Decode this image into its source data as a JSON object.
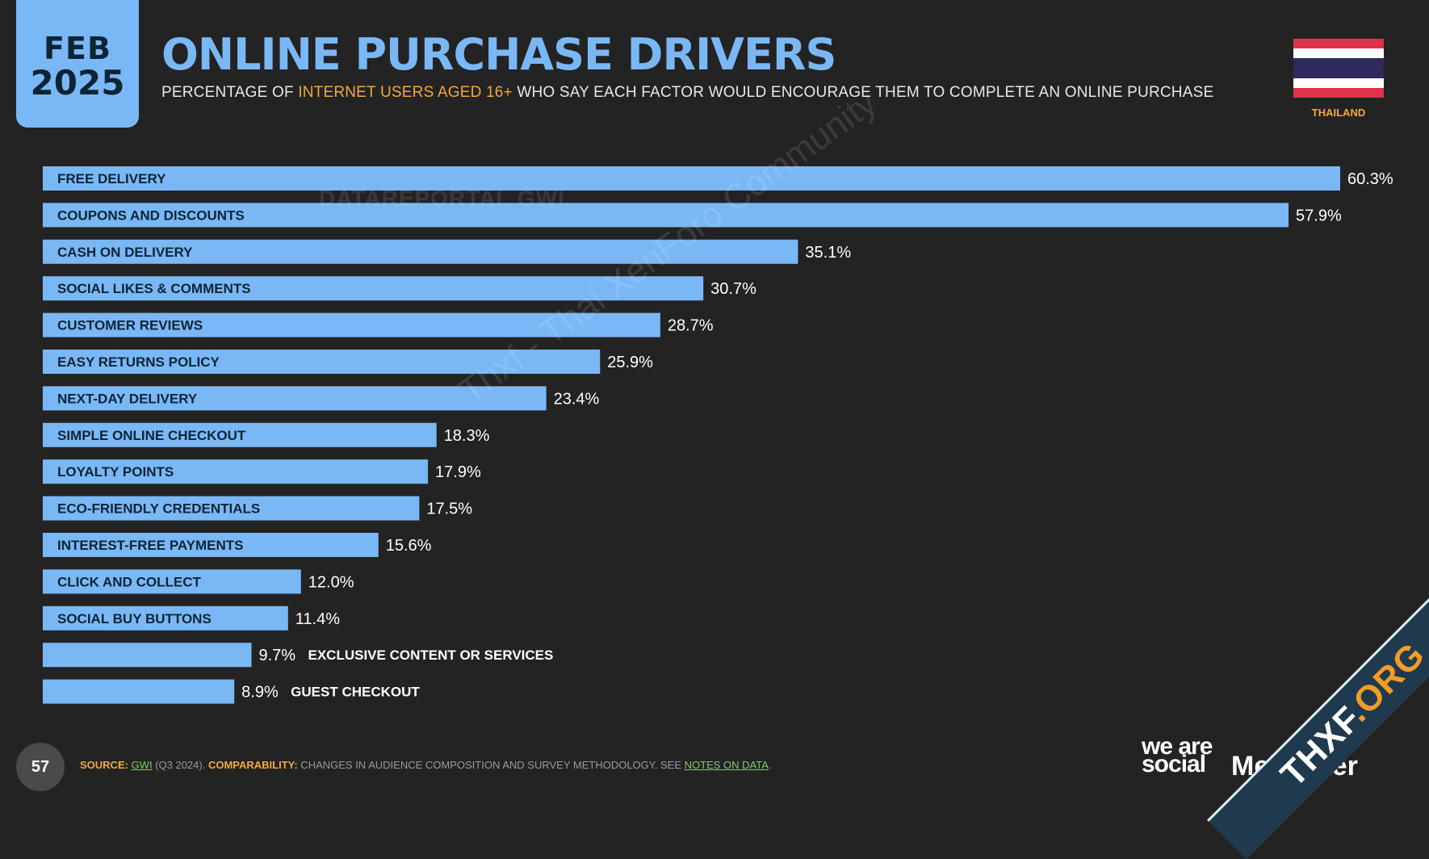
{
  "header": {
    "month": "FEB",
    "year": "2025",
    "title": "ONLINE PURCHASE DRIVERS",
    "subtitle_pre": "PERCENTAGE OF ",
    "subtitle_highlight": "INTERNET USERS AGED 16+",
    "subtitle_post": " WHO SAY EACH FACTOR WOULD ENCOURAGE THEM TO COMPLETE AN ONLINE PURCHASE",
    "country": "THAILAND"
  },
  "watermarks": {
    "gwi": "DATAREPORTAL   GWI.",
    "thxf": "Thxf - Thai XenForo Community"
  },
  "colors": {
    "accent": "#7ab8f5",
    "highlight": "#f4a83a",
    "background": "#232323",
    "bar_label": "#0d2436"
  },
  "chart_data": {
    "type": "bar",
    "orientation": "horizontal",
    "categories": [
      "FREE DELIVERY",
      "COUPONS AND DISCOUNTS",
      "CASH ON DELIVERY",
      "SOCIAL LIKES & COMMENTS",
      "CUSTOMER REVIEWS",
      "EASY RETURNS POLICY",
      "NEXT-DAY DELIVERY",
      "SIMPLE ONLINE CHECKOUT",
      "LOYALTY POINTS",
      "ECO-FRIENDLY CREDENTIALS",
      "INTEREST-FREE PAYMENTS",
      "CLICK AND COLLECT",
      "SOCIAL BUY BUTTONS",
      "EXCLUSIVE CONTENT OR SERVICES",
      "GUEST CHECKOUT"
    ],
    "values": [
      60.3,
      57.9,
      35.1,
      30.7,
      28.7,
      25.9,
      23.4,
      18.3,
      17.9,
      17.5,
      15.6,
      12.0,
      11.4,
      9.7,
      8.9
    ],
    "value_labels": [
      "60.3%",
      "57.9%",
      "35.1%",
      "30.7%",
      "28.7%",
      "25.9%",
      "23.4%",
      "18.3%",
      "17.9%",
      "17.5%",
      "15.6%",
      "12.0%",
      "11.4%",
      "9.7%",
      "8.9%"
    ],
    "unit": "%",
    "xlim": [
      0,
      60.3
    ],
    "grid": false,
    "legend": "none"
  },
  "footer": {
    "page_number": "57",
    "source_label": "SOURCE:",
    "source_gwi": "GWI",
    "source_date": " (Q3 2024). ",
    "comparability_label": "COMPARABILITY:",
    "comparability_text": " CHANGES IN AUDIENCE COMPOSITION AND SURVEY METHODOLOGY. SEE ",
    "notes_link": "NOTES ON DATA",
    "period": ".",
    "brand_was": "we are social",
    "brand_meltwater": "Meltwater"
  },
  "banner": {
    "main": "THXF",
    "suffix": ".ORG"
  }
}
